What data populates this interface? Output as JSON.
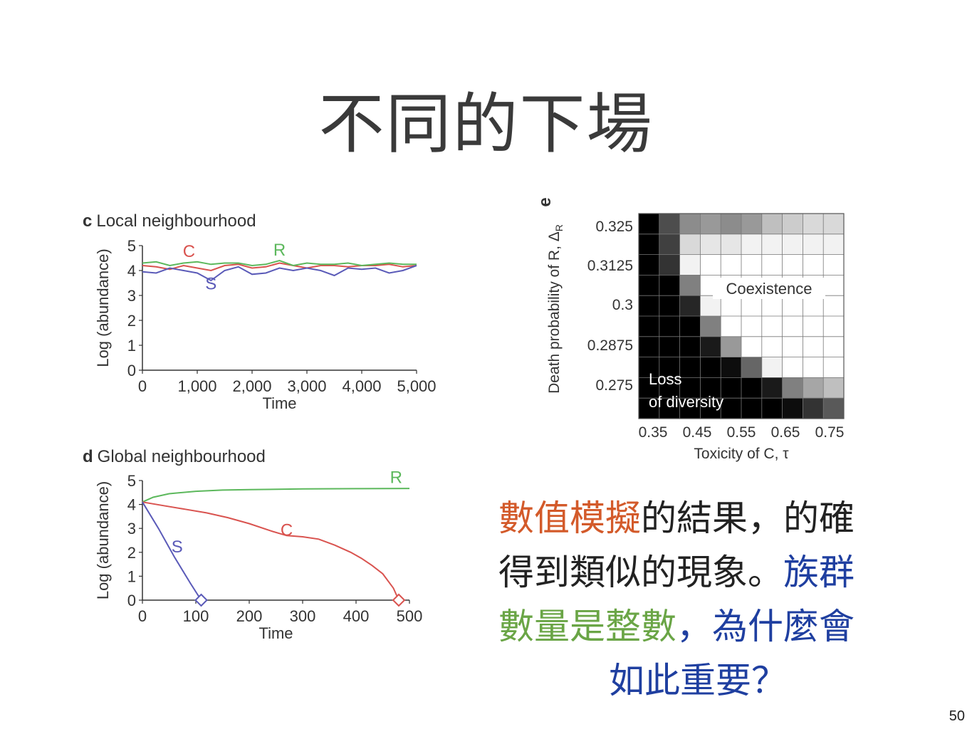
{
  "slide": {
    "title": "不同的下場",
    "page_number": "50"
  },
  "caption": {
    "line1": {
      "a": "數值模擬",
      "b": "的結果，的確"
    },
    "line2": {
      "a": "得到類似的現象。",
      "b": "族群"
    },
    "line3": {
      "a": "數量是整數",
      "b": "，為什麼會"
    },
    "line4": {
      "a": "如此重要？"
    },
    "colors": {
      "red": "#d35a2a",
      "green": "#6aa546",
      "blue": "#1f3fa0"
    }
  },
  "chart_data": [
    {
      "panel": "c",
      "type": "line",
      "title": "Local neighbourhood",
      "xlabel": "Time",
      "ylabel": "Log (abundance)",
      "xlim": [
        0,
        5000
      ],
      "ylim": [
        0,
        5
      ],
      "xticks": [
        "0",
        "1,000",
        "2,000",
        "3,000",
        "4,000",
        "5,000"
      ],
      "yticks": [
        "0",
        "1",
        "2",
        "3",
        "4",
        "5"
      ],
      "x": [
        0,
        250,
        500,
        750,
        1000,
        1250,
        1500,
        1750,
        2000,
        2250,
        2500,
        2750,
        3000,
        3250,
        3500,
        3750,
        4000,
        4250,
        4500,
        4750,
        5000
      ],
      "series": [
        {
          "name": "C",
          "color": "#d9534f",
          "values": [
            4.2,
            4.15,
            4.05,
            4.2,
            4.1,
            4.0,
            4.2,
            4.25,
            4.1,
            4.15,
            4.3,
            4.2,
            4.1,
            4.2,
            4.2,
            4.15,
            4.2,
            4.2,
            4.25,
            4.15,
            4.2
          ]
        },
        {
          "name": "R",
          "color": "#5cb85c",
          "values": [
            4.3,
            4.35,
            4.2,
            4.3,
            4.35,
            4.25,
            4.3,
            4.3,
            4.2,
            4.25,
            4.4,
            4.2,
            4.3,
            4.25,
            4.25,
            4.3,
            4.2,
            4.25,
            4.3,
            4.25,
            4.25
          ]
        },
        {
          "name": "S",
          "color": "#5a5ab8",
          "values": [
            3.95,
            3.9,
            4.1,
            4.0,
            3.9,
            3.6,
            4.0,
            4.15,
            3.85,
            3.9,
            4.1,
            4.0,
            4.1,
            4.0,
            3.8,
            4.1,
            4.05,
            4.1,
            3.9,
            4.0,
            4.2
          ]
        }
      ]
    },
    {
      "panel": "d",
      "type": "line",
      "title": "Global neighbourhood",
      "xlabel": "Time",
      "ylabel": "Log (abundance)",
      "xlim": [
        0,
        500
      ],
      "ylim": [
        0,
        5
      ],
      "xticks": [
        "0",
        "100",
        "200",
        "300",
        "400",
        "500"
      ],
      "yticks": [
        "0",
        "1",
        "2",
        "3",
        "4",
        "5"
      ],
      "series": [
        {
          "name": "R",
          "color": "#5cb85c",
          "x": [
            0,
            20,
            50,
            100,
            150,
            200,
            300,
            400,
            500
          ],
          "values": [
            4.1,
            4.3,
            4.45,
            4.55,
            4.6,
            4.62,
            4.65,
            4.66,
            4.67
          ]
        },
        {
          "name": "C",
          "color": "#d9534f",
          "x": [
            0,
            40,
            80,
            120,
            160,
            200,
            240,
            270,
            300,
            330,
            360,
            390,
            410,
            430,
            450,
            470,
            480
          ],
          "values": [
            4.1,
            3.95,
            3.8,
            3.65,
            3.45,
            3.2,
            2.9,
            2.7,
            2.65,
            2.55,
            2.3,
            2.0,
            1.75,
            1.45,
            1.1,
            0.5,
            0.0
          ]
        },
        {
          "name": "S",
          "color": "#5a5ab8",
          "x": [
            0,
            30,
            60,
            90,
            110
          ],
          "values": [
            4.1,
            3.0,
            1.8,
            0.7,
            0.0
          ]
        }
      ],
      "extinction_markers": [
        {
          "series": "S",
          "x": 110,
          "y": 0
        },
        {
          "series": "C",
          "x": 480,
          "y": 0
        }
      ]
    },
    {
      "panel": "e",
      "type": "heatmap",
      "xlabel": "Toxicity of C, τ",
      "ylabel": "Death probability of R, Δ",
      "ylabel_sub": "R",
      "xticks": [
        "0.35",
        "0.45",
        "0.55",
        "0.65",
        "0.75"
      ],
      "yticks": [
        "0.275",
        "0.2875",
        "0.3",
        "0.3125",
        "0.325"
      ],
      "annotations": [
        "Coexistence",
        "Loss",
        "of diversity"
      ],
      "rows": 10,
      "cols": 10,
      "values": [
        [
          0.0,
          0.3,
          0.55,
          0.6,
          0.55,
          0.6,
          0.75,
          0.8,
          0.85,
          0.85
        ],
        [
          0.0,
          0.25,
          0.85,
          0.9,
          0.9,
          0.95,
          0.95,
          0.95,
          0.95,
          0.95
        ],
        [
          0.0,
          0.2,
          0.95,
          1.0,
          1.0,
          1.0,
          1.0,
          1.0,
          1.0,
          1.0
        ],
        [
          0.0,
          0.0,
          0.5,
          1.0,
          1.0,
          1.0,
          1.0,
          1.0,
          1.0,
          1.0
        ],
        [
          0.0,
          0.0,
          0.15,
          0.95,
          1.0,
          1.0,
          1.0,
          1.0,
          1.0,
          1.0
        ],
        [
          0.0,
          0.0,
          0.0,
          0.5,
          1.0,
          1.0,
          1.0,
          1.0,
          1.0,
          1.0
        ],
        [
          0.0,
          0.0,
          0.0,
          0.1,
          0.6,
          1.0,
          1.0,
          1.0,
          1.0,
          1.0
        ],
        [
          0.0,
          0.0,
          0.0,
          0.0,
          0.05,
          0.4,
          0.95,
          1.0,
          1.0,
          1.0
        ],
        [
          0.0,
          0.0,
          0.0,
          0.0,
          0.0,
          0.0,
          0.1,
          0.5,
          0.65,
          0.75
        ],
        [
          0.0,
          0.0,
          0.0,
          0.0,
          0.0,
          0.0,
          0.0,
          0.05,
          0.2,
          0.35
        ]
      ]
    }
  ]
}
